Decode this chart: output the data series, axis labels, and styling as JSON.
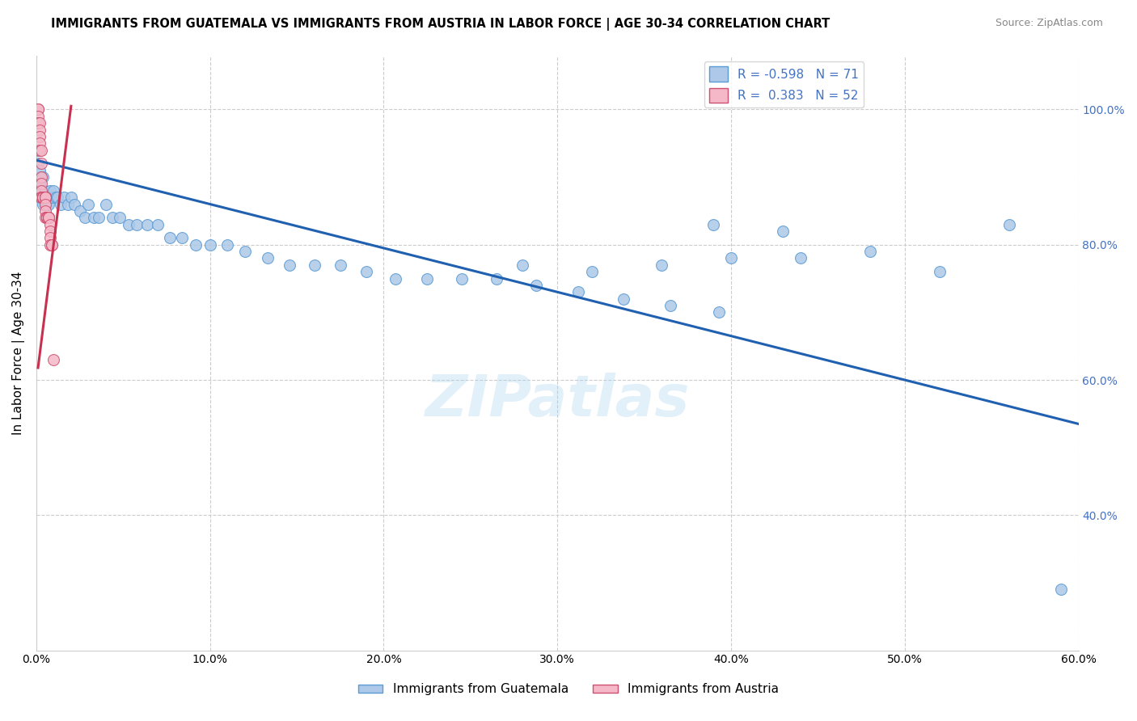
{
  "title": "IMMIGRANTS FROM GUATEMALA VS IMMIGRANTS FROM AUSTRIA IN LABOR FORCE | AGE 30-34 CORRELATION CHART",
  "source": "Source: ZipAtlas.com",
  "ylabel": "In Labor Force | Age 30-34",
  "xlim": [
    0.0,
    0.6
  ],
  "ylim": [
    0.2,
    1.08
  ],
  "x_tick_vals": [
    0.0,
    0.1,
    0.2,
    0.3,
    0.4,
    0.5,
    0.6
  ],
  "y_tick_vals": [
    0.4,
    0.6,
    0.8,
    1.0
  ],
  "guatemala_color": "#adc8e8",
  "guatemala_edge": "#5b9bd5",
  "austria_color": "#f4b8c8",
  "austria_edge": "#d05070",
  "legend_R_guatemala": "-0.598",
  "legend_N_guatemala": "71",
  "legend_R_austria": "0.383",
  "legend_N_austria": "52",
  "blue_line_color": "#2060b0",
  "pink_line_color": "#c83050",
  "blue_line_x": [
    0.0,
    0.6
  ],
  "blue_line_y": [
    0.925,
    0.535
  ],
  "pink_line_x": [
    0.001,
    0.02
  ],
  "pink_line_y": [
    0.618,
    1.005
  ],
  "guatemala_x": [
    0.001,
    0.001,
    0.002,
    0.002,
    0.002,
    0.003,
    0.003,
    0.003,
    0.004,
    0.004,
    0.004,
    0.005,
    0.005,
    0.005,
    0.006,
    0.006,
    0.007,
    0.007,
    0.008,
    0.009,
    0.01,
    0.011,
    0.012,
    0.014,
    0.016,
    0.018,
    0.02,
    0.022,
    0.025,
    0.028,
    0.03,
    0.033,
    0.036,
    0.04,
    0.044,
    0.048,
    0.053,
    0.058,
    0.064,
    0.07,
    0.077,
    0.084,
    0.092,
    0.1,
    0.11,
    0.12,
    0.133,
    0.146,
    0.16,
    0.175,
    0.19,
    0.207,
    0.225,
    0.245,
    0.265,
    0.288,
    0.312,
    0.338,
    0.365,
    0.393,
    0.28,
    0.32,
    0.36,
    0.4,
    0.44,
    0.48,
    0.52,
    0.39,
    0.43,
    0.56,
    0.59
  ],
  "guatemala_y": [
    0.92,
    0.94,
    0.91,
    0.89,
    0.87,
    0.9,
    0.88,
    0.87,
    0.9,
    0.87,
    0.86,
    0.88,
    0.87,
    0.86,
    0.87,
    0.86,
    0.87,
    0.86,
    0.88,
    0.87,
    0.88,
    0.87,
    0.87,
    0.86,
    0.87,
    0.86,
    0.87,
    0.86,
    0.85,
    0.84,
    0.86,
    0.84,
    0.84,
    0.86,
    0.84,
    0.84,
    0.83,
    0.83,
    0.83,
    0.83,
    0.81,
    0.81,
    0.8,
    0.8,
    0.8,
    0.79,
    0.78,
    0.77,
    0.77,
    0.77,
    0.76,
    0.75,
    0.75,
    0.75,
    0.75,
    0.74,
    0.73,
    0.72,
    0.71,
    0.7,
    0.77,
    0.76,
    0.77,
    0.78,
    0.78,
    0.79,
    0.76,
    0.83,
    0.82,
    0.83,
    0.29
  ],
  "austria_x": [
    0.001,
    0.001,
    0.001,
    0.001,
    0.002,
    0.002,
    0.002,
    0.002,
    0.002,
    0.003,
    0.003,
    0.003,
    0.003,
    0.003,
    0.003,
    0.003,
    0.003,
    0.004,
    0.004,
    0.004,
    0.004,
    0.004,
    0.004,
    0.004,
    0.005,
    0.005,
    0.005,
    0.005,
    0.005,
    0.005,
    0.005,
    0.005,
    0.005,
    0.005,
    0.005,
    0.006,
    0.006,
    0.006,
    0.006,
    0.006,
    0.007,
    0.007,
    0.007,
    0.007,
    0.007,
    0.008,
    0.008,
    0.008,
    0.008,
    0.009,
    0.009,
    0.01
  ],
  "austria_y": [
    1.0,
    1.0,
    0.99,
    0.98,
    0.98,
    0.97,
    0.96,
    0.95,
    0.94,
    0.94,
    0.92,
    0.9,
    0.89,
    0.88,
    0.87,
    0.87,
    0.87,
    0.87,
    0.87,
    0.87,
    0.87,
    0.87,
    0.87,
    0.87,
    0.87,
    0.87,
    0.87,
    0.87,
    0.87,
    0.87,
    0.87,
    0.87,
    0.86,
    0.85,
    0.84,
    0.84,
    0.84,
    0.84,
    0.84,
    0.84,
    0.84,
    0.84,
    0.84,
    0.84,
    0.84,
    0.83,
    0.82,
    0.81,
    0.8,
    0.8,
    0.8,
    0.63
  ]
}
